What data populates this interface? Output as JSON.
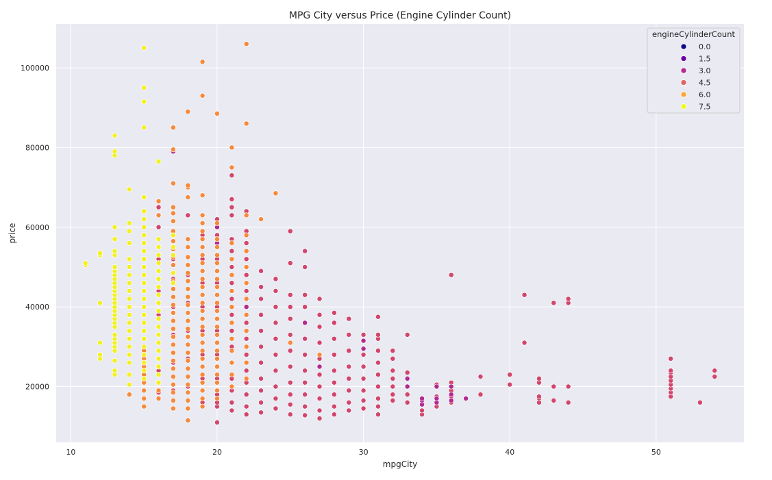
{
  "chart_data": {
    "type": "scatter",
    "title": "MPG City versus Price (Engine Cylinder Count)",
    "xlabel": "mpgCity",
    "ylabel": "price",
    "xlim": [
      9,
      56
    ],
    "ylim": [
      6000,
      111000
    ],
    "xticks": [
      10,
      20,
      30,
      40,
      50
    ],
    "yticks": [
      20000,
      40000,
      60000,
      80000,
      100000
    ],
    "grid": true,
    "legend": {
      "title": "engineCylinderCount",
      "position": "top-right",
      "entries": [
        {
          "label": "0.0",
          "color": "#0d0887"
        },
        {
          "label": "1.5",
          "color": "#6a00a8"
        },
        {
          "label": "3.0",
          "color": "#b12a90"
        },
        {
          "label": "4.5",
          "color": "#e16462"
        },
        {
          "label": "6.0",
          "color": "#fca636"
        },
        {
          "label": "7.5",
          "color": "#f0f921"
        }
      ]
    },
    "colors": {
      "background": "#eaeaf2",
      "grid": "#ffffff",
      "c4": "#d1466c",
      "c3": "#b12a90",
      "c6": "#f58a3c",
      "c8": "#f2f024"
    },
    "series": [
      {
        "name": "4.5",
        "color_key": "c4",
        "columns": [
          {
            "x": 16,
            "y": [
              18500,
              24000,
              31000,
              38000,
              44000,
              52000,
              60000,
              65000
            ]
          },
          {
            "x": 17,
            "y": [
              19000,
              26000,
              33000,
              40000,
              47000,
              52000
            ]
          },
          {
            "x": 18,
            "y": [
              20000,
              27000,
              34000,
              41000,
              48000,
              63000
            ]
          },
          {
            "x": 19,
            "y": [
              16000,
              22000,
              28000,
              34000,
              40000,
              46000,
              52000,
              58000
            ]
          },
          {
            "x": 20,
            "y": [
              11000,
              15000,
              16000,
              18000,
              22000,
              28000,
              34000,
              40000,
              46000,
              52000,
              58000,
              62000
            ]
          },
          {
            "x": 21,
            "y": [
              14000,
              16000,
              19000,
              22000,
              26000,
              30000,
              34000,
              38000,
              42000,
              46000,
              50000,
              54000,
              57000,
              63000,
              65000,
              67000,
              73000
            ]
          },
          {
            "x": 22,
            "y": [
              13000,
              15000,
              18000,
              21000,
              24000,
              28000,
              32000,
              36000,
              40000,
              44000,
              48000,
              52000,
              56000,
              59000,
              64000
            ]
          },
          {
            "x": 23,
            "y": [
              13500,
              16000,
              19000,
              22000,
              26000,
              30000,
              34000,
              38000,
              42000,
              45000,
              49000
            ]
          },
          {
            "x": 24,
            "y": [
              14500,
              17000,
              20000,
              24000,
              28000,
              32000,
              36000,
              40000,
              44000,
              47000
            ]
          },
          {
            "x": 25,
            "y": [
              13000,
              15500,
              18000,
              21000,
              25000,
              29000,
              33000,
              37000,
              40000,
              43000,
              51000,
              59000
            ]
          },
          {
            "x": 26,
            "y": [
              12800,
              15000,
              18000,
              21000,
              24000,
              28000,
              32000,
              36000,
              40000,
              43000,
              50000,
              54000
            ]
          },
          {
            "x": 27,
            "y": [
              12000,
              14000,
              17000,
              20000,
              23000,
              27000,
              31000,
              35000,
              38000,
              42000
            ]
          },
          {
            "x": 28,
            "y": [
              13000,
              15000,
              18000,
              21000,
              24000,
              28000,
              32000,
              36000,
              38500
            ]
          },
          {
            "x": 29,
            "y": [
              14000,
              16000,
              19000,
              22000,
              25000,
              29000,
              33000,
              37000
            ]
          },
          {
            "x": 30,
            "y": [
              14500,
              16500,
              19000,
              22000,
              25000,
              28000,
              31500,
              33000
            ]
          },
          {
            "x": 31,
            "y": [
              13000,
              15000,
              17000,
              20000,
              23000,
              26000,
              29000,
              32000,
              33000,
              37500
            ]
          },
          {
            "x": 32,
            "y": [
              16500,
              18000,
              20000,
              22000,
              24000,
              27000,
              29000
            ]
          },
          {
            "x": 33,
            "y": [
              16000,
              18000,
              20000,
              22000,
              23500,
              33000
            ]
          },
          {
            "x": 34,
            "y": [
              13000,
              14000
            ]
          },
          {
            "x": 35,
            "y": [
              15000,
              16000,
              17500,
              20500
            ]
          },
          {
            "x": 36,
            "y": [
              16000,
              17500,
              19000,
              20000,
              21000,
              48000
            ]
          },
          {
            "x": 38,
            "y": [
              18000,
              22500
            ]
          },
          {
            "x": 40,
            "y": [
              20500,
              23000
            ]
          },
          {
            "x": 41,
            "y": [
              31000,
              43000
            ]
          },
          {
            "x": 42,
            "y": [
              16000,
              17000,
              17500,
              21000,
              22000
            ]
          },
          {
            "x": 43,
            "y": [
              16500,
              20000,
              41000
            ]
          },
          {
            "x": 44,
            "y": [
              16000,
              20000,
              41000,
              42000
            ]
          },
          {
            "x": 51,
            "y": [
              17500,
              18500,
              19500,
              20500,
              21500,
              22500,
              23500,
              24000,
              27000
            ]
          },
          {
            "x": 53,
            "y": [
              16000
            ]
          },
          {
            "x": 54,
            "y": [
              22500,
              24000
            ]
          }
        ]
      },
      {
        "name": "3.0",
        "color_key": "c3",
        "columns": [
          {
            "x": 17,
            "y": [
              79000
            ]
          },
          {
            "x": 20,
            "y": [
              56000,
              60000
            ]
          },
          {
            "x": 22,
            "y": [
              40000
            ]
          },
          {
            "x": 26,
            "y": [
              36000
            ]
          },
          {
            "x": 27,
            "y": [
              25000
            ]
          },
          {
            "x": 30,
            "y": [
              31500,
              29500
            ]
          },
          {
            "x": 33,
            "y": [
              20000,
              22000
            ]
          },
          {
            "x": 34,
            "y": [
              15500,
              16500,
              17000
            ]
          },
          {
            "x": 35,
            "y": [
              16000,
              17000,
              20000
            ]
          },
          {
            "x": 36,
            "y": [
              16500,
              18000,
              20000
            ]
          },
          {
            "x": 37,
            "y": [
              17000
            ]
          }
        ]
      },
      {
        "name": "6.0",
        "color_key": "c6",
        "columns": [
          {
            "x": 14,
            "y": [
              18000
            ]
          },
          {
            "x": 15,
            "y": [
              15000,
              17000,
              19000,
              21000,
              23000,
              25000,
              27000,
              29000
            ]
          },
          {
            "x": 16,
            "y": [
              17000,
              19000,
              21000,
              23000,
              25000,
              27000,
              29000,
              31000,
              33000,
              35000,
              37000,
              39000,
              41000,
              43000,
              45000,
              47000,
              49000,
              51000,
              53000,
              55000,
              63000,
              66500
            ]
          },
          {
            "x": 17,
            "y": [
              14500,
              16500,
              18500,
              20500,
              22500,
              24500,
              26500,
              28500,
              30500,
              32500,
              34500,
              36500,
              38500,
              40500,
              42500,
              44500,
              46500,
              48500,
              50500,
              52500,
              54500,
              56500,
              59000,
              61500,
              63500,
              65000,
              71000,
              79500,
              85000
            ]
          },
          {
            "x": 18,
            "y": [
              11500,
              14500,
              16500,
              18500,
              20500,
              22500,
              24500,
              26500,
              28500,
              30500,
              32500,
              34500,
              36500,
              38500,
              40500,
              42500,
              44500,
              46500,
              48500,
              50500,
              52500,
              55000,
              57000,
              67500,
              70000,
              70500,
              89000
            ]
          },
          {
            "x": 19,
            "y": [
              15000,
              17000,
              19000,
              21000,
              23000,
              25000,
              27000,
              29000,
              31000,
              33000,
              35000,
              37000,
              39000,
              41000,
              43000,
              45000,
              47000,
              49000,
              51000,
              53000,
              55000,
              57000,
              59000,
              61000,
              63000,
              68000,
              93000,
              101500
            ]
          },
          {
            "x": 20,
            "y": [
              17000,
              19000,
              21000,
              23000,
              25000,
              27000,
              29000,
              31000,
              33000,
              35000,
              37000,
              39000,
              41000,
              43000,
              45000,
              47000,
              49000,
              51000,
              53000,
              55000,
              57000,
              61000,
              88500
            ]
          },
          {
            "x": 21,
            "y": [
              20000,
              23000,
              26000,
              29000,
              32000,
              36000,
              40000,
              44000,
              48000,
              52000,
              56000,
              75000,
              80000
            ]
          },
          {
            "x": 22,
            "y": [
              22000,
              26000,
              30000,
              34000,
              38000,
              42000,
              46000,
              50000,
              54000,
              58000,
              63000,
              86000,
              106000
            ]
          },
          {
            "x": 23,
            "y": [
              62000
            ]
          },
          {
            "x": 24,
            "y": [
              68500
            ]
          },
          {
            "x": 25,
            "y": [
              31000
            ]
          },
          {
            "x": 27,
            "y": [
              28000
            ]
          }
        ]
      },
      {
        "name": "7.5",
        "color_key": "c8",
        "columns": [
          {
            "x": 11,
            "y": [
              50500,
              51000
            ]
          },
          {
            "x": 12,
            "y": [
              27000,
              28000,
              31000,
              41000,
              53000,
              53500
            ]
          },
          {
            "x": 13,
            "y": [
              23000,
              24000,
              26500,
              29000,
              30000,
              31000,
              32000,
              33000,
              35000,
              36000,
              37000,
              38000,
              39000,
              40000,
              41000,
              42000,
              43000,
              44000,
              45000,
              46000,
              47000,
              48000,
              49000,
              50000,
              53000,
              54000,
              57000,
              60000,
              78000,
              79000,
              83000
            ]
          },
          {
            "x": 14,
            "y": [
              20500,
              23000,
              26000,
              28000,
              30000,
              32000,
              34000,
              36000,
              38000,
              40000,
              42000,
              44000,
              46000,
              48000,
              50000,
              52000,
              56000,
              59000,
              61000,
              69500
            ]
          },
          {
            "x": 15,
            "y": [
              22000,
              24000,
              26000,
              28000,
              30000,
              32000,
              34000,
              36000,
              38000,
              40000,
              42000,
              44000,
              46000,
              48000,
              50000,
              52000,
              54000,
              56000,
              58000,
              60000,
              62000,
              64000,
              67500,
              85000,
              91500,
              95000,
              105000
            ]
          },
          {
            "x": 16,
            "y": [
              21000,
              23000,
              25000,
              27000,
              29000,
              31000,
              33000,
              35000,
              37000,
              39000,
              41000,
              43000,
              45000,
              47000,
              49000,
              51000,
              53000,
              55000,
              57000,
              76500
            ]
          },
          {
            "x": 17,
            "y": [
              46000,
              48500,
              53000,
              55000,
              58000
            ]
          }
        ]
      }
    ]
  }
}
